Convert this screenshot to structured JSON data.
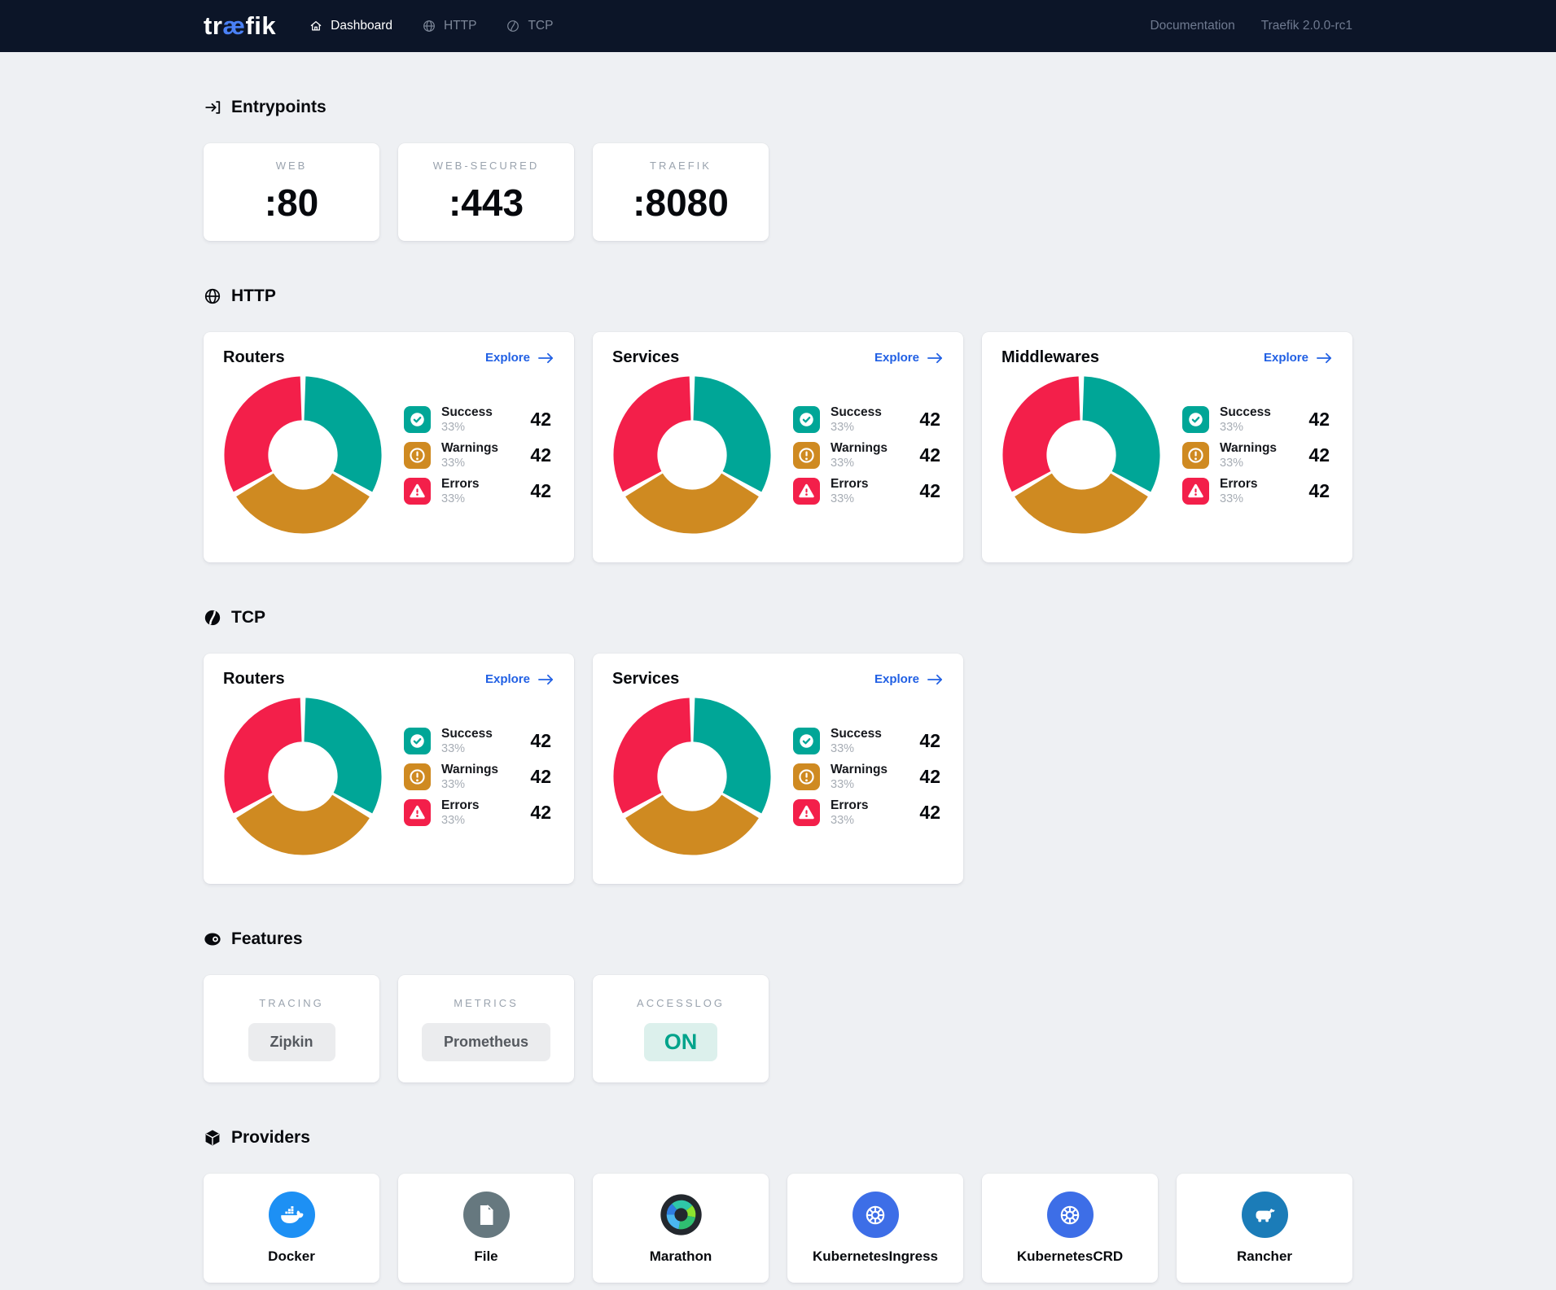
{
  "theme": {
    "navbar_bg": "#0c1528",
    "page_bg": "#eef0f3",
    "accent_blue": "#2160e4",
    "logo_blue": "#4a80f5",
    "success_color": "#00a697",
    "warning_color": "#cf8a21",
    "error_color": "#f31f4a"
  },
  "navbar": {
    "logo_pre": "tr",
    "logo_ae": "æ",
    "logo_post": "fik",
    "items": [
      {
        "label": "Dashboard",
        "active": true
      },
      {
        "label": "HTTP",
        "active": false
      },
      {
        "label": "TCP",
        "active": false
      }
    ],
    "documentation": "Documentation",
    "version": "Traefik 2.0.0-rc1"
  },
  "sections": {
    "entrypoints": {
      "title": "Entrypoints",
      "cards": [
        {
          "name": "WEB",
          "port": ":80"
        },
        {
          "name": "WEB-SECURED",
          "port": ":443"
        },
        {
          "name": "TRAEFIK",
          "port": ":8080"
        }
      ]
    },
    "http": {
      "title": "HTTP",
      "cards": [
        {
          "title": "Routers",
          "explore_label": "Explore",
          "chart": "http-routers"
        },
        {
          "title": "Services",
          "explore_label": "Explore",
          "chart": "http-services"
        },
        {
          "title": "Middlewares",
          "explore_label": "Explore",
          "chart": "http-middlewares"
        }
      ]
    },
    "tcp": {
      "title": "TCP",
      "cards": [
        {
          "title": "Routers",
          "explore_label": "Explore",
          "chart": "tcp-routers"
        },
        {
          "title": "Services",
          "explore_label": "Explore",
          "chart": "tcp-services"
        }
      ]
    },
    "features": {
      "title": "Features",
      "cards": [
        {
          "name": "TRACING",
          "value": "Zipkin",
          "variant": "neutral"
        },
        {
          "name": "METRICS",
          "value": "Prometheus",
          "variant": "neutral"
        },
        {
          "name": "ACCESSLOG",
          "value": "ON",
          "variant": "on"
        }
      ]
    },
    "providers": {
      "title": "Providers",
      "cards": [
        {
          "label": "Docker",
          "icon": "docker-icon",
          "color": "#1d90f4"
        },
        {
          "label": "File",
          "icon": "file-icon",
          "color": "#66787f"
        },
        {
          "label": "Marathon",
          "icon": "marathon-icon",
          "color": "none"
        },
        {
          "label": "KubernetesIngress",
          "icon": "kubernetes-icon",
          "color": "#3d6ee7"
        },
        {
          "label": "KubernetesCRD",
          "icon": "kubernetes-icon",
          "color": "#3d6ee7"
        },
        {
          "label": "Rancher",
          "icon": "rancher-icon",
          "color": "#1b7cb8"
        }
      ]
    }
  },
  "chart_data": [
    {
      "id": "http-routers",
      "type": "pie",
      "title": "HTTP Routers",
      "categories": [
        "Success",
        "Warnings",
        "Errors"
      ],
      "values": [
        33,
        33,
        33
      ],
      "counts": [
        42,
        42,
        42
      ],
      "colors": [
        "#00a697",
        "#cf8a21",
        "#f31f4a"
      ],
      "hole": 0.46,
      "legend_position": "right"
    },
    {
      "id": "http-services",
      "type": "pie",
      "title": "HTTP Services",
      "categories": [
        "Success",
        "Warnings",
        "Errors"
      ],
      "values": [
        33,
        33,
        33
      ],
      "counts": [
        42,
        42,
        42
      ],
      "colors": [
        "#00a697",
        "#cf8a21",
        "#f31f4a"
      ],
      "hole": 0.46,
      "legend_position": "right"
    },
    {
      "id": "http-middlewares",
      "type": "pie",
      "title": "HTTP Middlewares",
      "categories": [
        "Success",
        "Warnings",
        "Errors"
      ],
      "values": [
        33,
        33,
        33
      ],
      "counts": [
        42,
        42,
        42
      ],
      "colors": [
        "#00a697",
        "#cf8a21",
        "#f31f4a"
      ],
      "hole": 0.46,
      "legend_position": "right"
    },
    {
      "id": "tcp-routers",
      "type": "pie",
      "title": "TCP Routers",
      "categories": [
        "Success",
        "Warnings",
        "Errors"
      ],
      "values": [
        33,
        33,
        33
      ],
      "counts": [
        42,
        42,
        42
      ],
      "colors": [
        "#00a697",
        "#cf8a21",
        "#f31f4a"
      ],
      "hole": 0.46,
      "legend_position": "right"
    },
    {
      "id": "tcp-services",
      "type": "pie",
      "title": "TCP Services",
      "categories": [
        "Success",
        "Warnings",
        "Errors"
      ],
      "values": [
        33,
        33,
        33
      ],
      "counts": [
        42,
        42,
        42
      ],
      "colors": [
        "#00a697",
        "#cf8a21",
        "#f31f4a"
      ],
      "hole": 0.46,
      "legend_position": "right"
    }
  ]
}
